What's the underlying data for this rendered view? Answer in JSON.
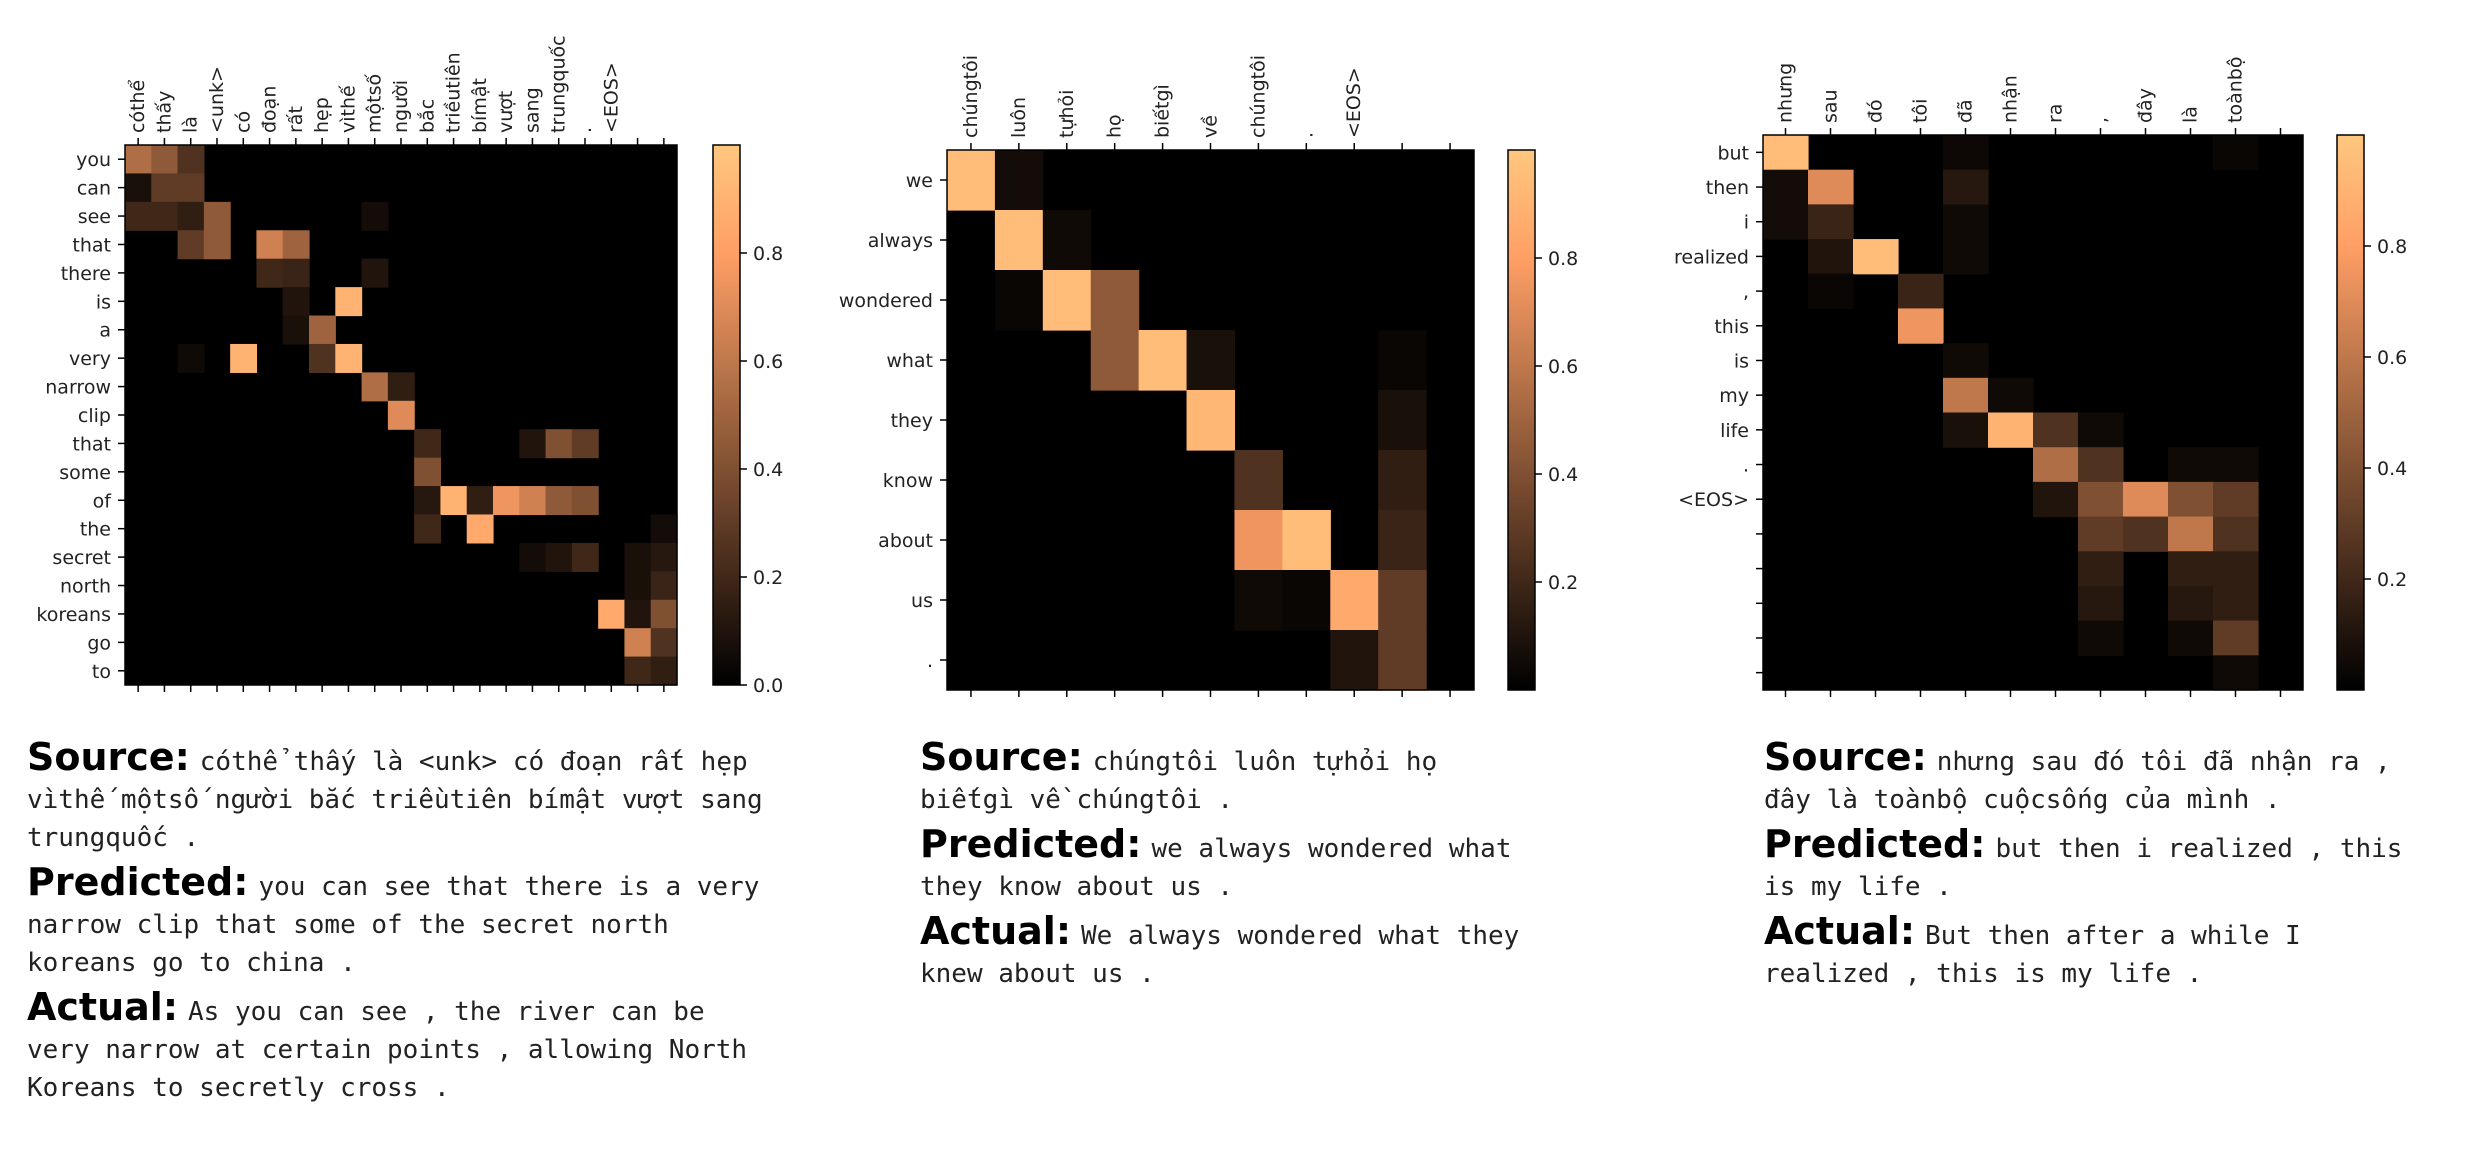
{
  "panels": [
    {
      "source_label": "Source:",
      "source_text": "cóthể thấy là <unk> có đoạn rất hẹp vìthế mộtsố người bắc triềutiên bímật vượt sang trungquốc .",
      "predicted_label": "Predicted:",
      "predicted_text": "you can see that there is a very narrow clip that some of the secret north koreans go to china .",
      "actual_label": "Actual:",
      "actual_text": "As you can see , the river can be very narrow at certain points , allowing North Koreans to secretly cross ."
    },
    {
      "source_label": "Source:",
      "source_text": "chúngtôi luôn tựhỏi họ biếtgì về chúngtôi .",
      "predicted_label": "Predicted:",
      "predicted_text": "we always wondered what they know about us .",
      "actual_label": "Actual:",
      "actual_text": "We always wondered what they knew about us ."
    },
    {
      "source_label": "Source:",
      "source_text": "nhưng sau đó tôi đã nhận ra , đây là toànbộ cuộcsống của mình .",
      "predicted_label": "Predicted:",
      "predicted_text": "but then i realized , this is my life .",
      "actual_label": "Actual:",
      "actual_text": "But then after a while I realized , this is my life ."
    }
  ],
  "chart_data": [
    {
      "type": "heatmap",
      "colormap": "copper",
      "x_tick_labels": [
        "cóthể",
        "thấy",
        "là",
        "<unk>",
        "có",
        "đoạn",
        "rất",
        "hẹp",
        "vìthế",
        "mộtsố",
        "người",
        "bắc",
        "triềutiên",
        "bímật",
        "vượt",
        "sang",
        "trungquốc",
        ".",
        "<EOS>",
        "",
        ""
      ],
      "y_tick_labels": [
        "you",
        "can",
        "see",
        "that",
        "there",
        "is",
        "a",
        "very",
        "narrow",
        "clip",
        "that",
        "some",
        "of",
        "the",
        "secret",
        "north",
        "koreans",
        "go",
        "to"
      ],
      "colorbar_ticks": [
        0.0,
        0.2,
        0.4,
        0.6,
        0.8
      ],
      "colorbar_tick_labels": [
        "0.0",
        "0.2",
        "0.4",
        "0.6",
        "0.8"
      ],
      "vmin": 0,
      "vmax": 1,
      "cells": [
        [
          0,
          0,
          0.55
        ],
        [
          0,
          1,
          0.45
        ],
        [
          0,
          2,
          0.25
        ],
        [
          1,
          0,
          0.08
        ],
        [
          1,
          1,
          0.3
        ],
        [
          1,
          2,
          0.3
        ],
        [
          2,
          0,
          0.2
        ],
        [
          2,
          1,
          0.2
        ],
        [
          2,
          2,
          0.15
        ],
        [
          2,
          3,
          0.45
        ],
        [
          2,
          9,
          0.06
        ],
        [
          3,
          2,
          0.3
        ],
        [
          3,
          3,
          0.45
        ],
        [
          3,
          5,
          0.65
        ],
        [
          3,
          6,
          0.5
        ],
        [
          4,
          5,
          0.2
        ],
        [
          4,
          6,
          0.18
        ],
        [
          4,
          9,
          0.1
        ],
        [
          5,
          6,
          0.1
        ],
        [
          5,
          8,
          0.9
        ],
        [
          6,
          6,
          0.08
        ],
        [
          6,
          7,
          0.5
        ],
        [
          7,
          2,
          0.05
        ],
        [
          7,
          4,
          0.9
        ],
        [
          7,
          7,
          0.25
        ],
        [
          7,
          8,
          0.9
        ],
        [
          8,
          9,
          0.55
        ],
        [
          8,
          10,
          0.15
        ],
        [
          9,
          10,
          0.7
        ],
        [
          10,
          11,
          0.2
        ],
        [
          10,
          15,
          0.1
        ],
        [
          10,
          16,
          0.4
        ],
        [
          10,
          17,
          0.3
        ],
        [
          11,
          11,
          0.4
        ],
        [
          12,
          11,
          0.12
        ],
        [
          12,
          12,
          0.9
        ],
        [
          12,
          13,
          0.15
        ],
        [
          12,
          14,
          0.75
        ],
        [
          12,
          15,
          0.65
        ],
        [
          12,
          16,
          0.45
        ],
        [
          12,
          17,
          0.4
        ],
        [
          13,
          11,
          0.2
        ],
        [
          13,
          13,
          0.85
        ],
        [
          13,
          20,
          0.06
        ],
        [
          14,
          15,
          0.06
        ],
        [
          14,
          16,
          0.1
        ],
        [
          14,
          17,
          0.2
        ],
        [
          14,
          19,
          0.08
        ],
        [
          14,
          20,
          0.12
        ],
        [
          15,
          19,
          0.08
        ],
        [
          15,
          20,
          0.18
        ],
        [
          16,
          18,
          0.85
        ],
        [
          16,
          19,
          0.1
        ],
        [
          16,
          20,
          0.4
        ],
        [
          17,
          19,
          0.65
        ],
        [
          17,
          20,
          0.25
        ],
        [
          18,
          19,
          0.2
        ],
        [
          18,
          20,
          0.15
        ]
      ]
    },
    {
      "type": "heatmap",
      "colormap": "copper",
      "x_tick_labels": [
        "chúngtôi",
        "luôn",
        "tựhỏi",
        "họ",
        "biếtgì",
        "về",
        "chúngtôi",
        ".",
        "<EOS>",
        "",
        ""
      ],
      "y_tick_labels": [
        "we",
        "always",
        "wondered",
        "what",
        "they",
        "know",
        "about",
        "us",
        "."
      ],
      "colorbar_ticks": [
        0.2,
        0.4,
        0.6,
        0.8
      ],
      "colorbar_tick_labels": [
        "0.2",
        "0.4",
        "0.6",
        "0.8"
      ],
      "vmin": 0,
      "vmax": 1,
      "cells": [
        [
          0,
          0,
          0.95
        ],
        [
          0,
          1,
          0.06
        ],
        [
          1,
          1,
          0.95
        ],
        [
          1,
          2,
          0.05
        ],
        [
          2,
          1,
          0.03
        ],
        [
          2,
          2,
          0.95
        ],
        [
          2,
          3,
          0.45
        ],
        [
          3,
          3,
          0.45
        ],
        [
          3,
          4,
          0.95
        ],
        [
          3,
          5,
          0.08
        ],
        [
          3,
          9,
          0.03
        ],
        [
          4,
          5,
          0.92
        ],
        [
          4,
          9,
          0.08
        ],
        [
          5,
          6,
          0.25
        ],
        [
          5,
          9,
          0.15
        ],
        [
          6,
          6,
          0.75
        ],
        [
          6,
          7,
          0.95
        ],
        [
          6,
          9,
          0.18
        ],
        [
          7,
          6,
          0.05
        ],
        [
          7,
          7,
          0.03
        ],
        [
          7,
          8,
          0.85
        ],
        [
          7,
          9,
          0.3
        ],
        [
          8,
          8,
          0.1
        ],
        [
          8,
          9,
          0.3
        ]
      ]
    },
    {
      "type": "heatmap",
      "colormap": "copper",
      "x_tick_labels": [
        "nhưng",
        "sau",
        "đó",
        "tôi",
        "đã",
        "nhận",
        "ra",
        ",",
        "đây",
        "là",
        "toànbộ",
        ""
      ],
      "y_tick_labels": [
        "but",
        "then",
        "i",
        "realized",
        ",",
        "this",
        "is",
        "my",
        "life",
        ".",
        "<EOS>",
        "",
        "",
        "",
        "",
        ""
      ],
      "colorbar_ticks": [
        0.2,
        0.4,
        0.6,
        0.8
      ],
      "colorbar_tick_labels": [
        "0.2",
        "0.4",
        "0.6",
        "0.8"
      ],
      "vmin": 0,
      "vmax": 1,
      "cells": [
        [
          0,
          0,
          0.95
        ],
        [
          0,
          4,
          0.04
        ],
        [
          0,
          10,
          0.03
        ],
        [
          1,
          0,
          0.06
        ],
        [
          1,
          1,
          0.7
        ],
        [
          1,
          4,
          0.12
        ],
        [
          2,
          0,
          0.06
        ],
        [
          2,
          1,
          0.18
        ],
        [
          2,
          4,
          0.05
        ],
        [
          3,
          1,
          0.1
        ],
        [
          3,
          2,
          0.95
        ],
        [
          3,
          4,
          0.05
        ],
        [
          4,
          1,
          0.03
        ],
        [
          4,
          3,
          0.18
        ],
        [
          5,
          3,
          0.75
        ],
        [
          6,
          4,
          0.05
        ],
        [
          7,
          4,
          0.6
        ],
        [
          7,
          5,
          0.05
        ],
        [
          8,
          4,
          0.08
        ],
        [
          8,
          5,
          0.9
        ],
        [
          8,
          6,
          0.25
        ],
        [
          8,
          7,
          0.05
        ],
        [
          9,
          6,
          0.55
        ],
        [
          9,
          7,
          0.25
        ],
        [
          9,
          9,
          0.05
        ],
        [
          9,
          10,
          0.05
        ],
        [
          10,
          6,
          0.1
        ],
        [
          10,
          7,
          0.4
        ],
        [
          10,
          8,
          0.7
        ],
        [
          10,
          9,
          0.4
        ],
        [
          10,
          10,
          0.3
        ],
        [
          11,
          7,
          0.3
        ],
        [
          11,
          8,
          0.25
        ],
        [
          11,
          9,
          0.6
        ],
        [
          11,
          10,
          0.25
        ],
        [
          12,
          7,
          0.15
        ],
        [
          12,
          9,
          0.15
        ],
        [
          12,
          10,
          0.15
        ],
        [
          13,
          7,
          0.12
        ],
        [
          13,
          9,
          0.12
        ],
        [
          13,
          10,
          0.15
        ],
        [
          14,
          7,
          0.05
        ],
        [
          14,
          9,
          0.05
        ],
        [
          14,
          10,
          0.3
        ],
        [
          15,
          10,
          0.05
        ]
      ]
    }
  ]
}
